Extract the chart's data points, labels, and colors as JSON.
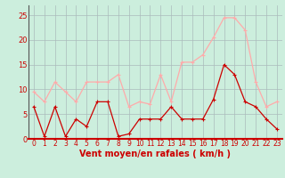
{
  "x": [
    0,
    1,
    2,
    3,
    4,
    5,
    6,
    7,
    8,
    9,
    10,
    11,
    12,
    13,
    14,
    15,
    16,
    17,
    18,
    19,
    20,
    21,
    22,
    23
  ],
  "wind_avg": [
    6.5,
    0.5,
    6.5,
    0.5,
    4,
    2.5,
    7.5,
    7.5,
    0.5,
    1,
    4,
    4,
    4,
    6.5,
    4,
    4,
    4,
    8,
    15,
    13,
    7.5,
    6.5,
    4,
    2
  ],
  "wind_gust": [
    9.5,
    7.5,
    11.5,
    9.5,
    7.5,
    11.5,
    11.5,
    11.5,
    13,
    6.5,
    7.5,
    7,
    13,
    7.5,
    15.5,
    15.5,
    17,
    20.5,
    24.5,
    24.5,
    22,
    11.5,
    6.5,
    7.5
  ],
  "color_avg": "#cc0000",
  "color_gust": "#ffaaaa",
  "bg_color": "#cceedd",
  "grid_color": "#aabbbb",
  "xlabel": "Vent moyen/en rafales ( km/h )",
  "ylim": [
    0,
    27
  ],
  "xlim": [
    -0.5,
    23.5
  ],
  "yticks": [
    0,
    5,
    10,
    15,
    20,
    25
  ],
  "xticks": [
    0,
    1,
    2,
    3,
    4,
    5,
    6,
    7,
    8,
    9,
    10,
    11,
    12,
    13,
    14,
    15,
    16,
    17,
    18,
    19,
    20,
    21,
    22,
    23
  ],
  "markersize": 2.5,
  "linewidth": 0.9,
  "xlabel_fontsize": 7,
  "tick_fontsize": 5.5
}
